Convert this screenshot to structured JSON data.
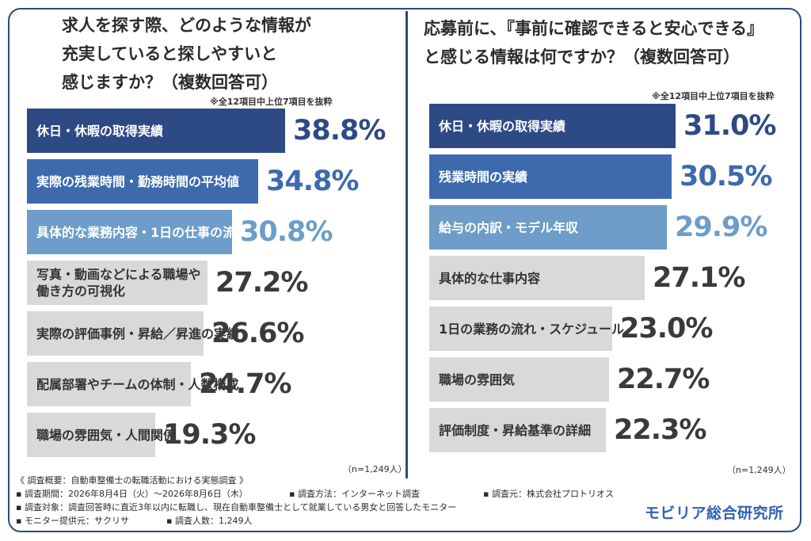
{
  "chart_data": [
    {
      "type": "bar",
      "orientation": "horizontal",
      "title": "求人を探す際、どのような情報が\n充実していると探しやすいと\n感じますか？（複数回答可）",
      "note": "※全12項目中上位7項目を抜粋",
      "sample": "（n=1,249人）",
      "categories": [
        "休日・休暇の取得実績",
        "実際の残業時間・勤務時間の平均値",
        "具体的な業務内容・1日の仕事の流れ",
        "写真・動画などによる職場や\n働き方の可視化",
        "実際の評価事例・昇給／昇進の実績",
        "配属部署やチームの体制・人数構成",
        "職場の雰囲気・人間関係"
      ],
      "values": [
        38.8,
        34.8,
        30.8,
        27.2,
        26.6,
        24.7,
        19.3
      ],
      "labels": [
        "38.8%",
        "34.8%",
        "30.8%",
        "27.2%",
        "26.6%",
        "24.7%",
        "19.3%"
      ],
      "xlim": [
        0,
        56
      ],
      "colors": [
        "#2e4a85",
        "#3d6aad",
        "#6d9dc8",
        "#d9d9d9",
        "#d9d9d9",
        "#d9d9d9",
        "#d9d9d9"
      ],
      "value_colors": [
        "#2e4a85",
        "#3d6aad",
        "#6d9dc8",
        "#3a3a3a",
        "#3a3a3a",
        "#3a3a3a",
        "#3a3a3a"
      ]
    },
    {
      "type": "bar",
      "orientation": "horizontal",
      "title": "応募前に、『事前に確認できると安心できる』\nと感じる情報は何ですか？（複数回答可）",
      "note": "※全12項目中上位7項目を抜粋",
      "sample": "（n=1,249人）",
      "categories": [
        "休日・休暇の取得実績",
        "残業時間の実績",
        "給与の内訳・モデル年収",
        "具体的な仕事内容",
        "1日の業務の流れ・スケジュール",
        "職場の雰囲気",
        "評価制度・昇給基準の詳細"
      ],
      "values": [
        31.0,
        30.5,
        29.9,
        27.1,
        23.0,
        22.7,
        22.3
      ],
      "labels": [
        "31.0%",
        "30.5%",
        "29.9%",
        "27.1%",
        "23.0%",
        "22.7%",
        "22.3%"
      ],
      "xlim": [
        0,
        45.9
      ],
      "colors": [
        "#2e4a85",
        "#3d6aad",
        "#6d9dc8",
        "#d9d9d9",
        "#d9d9d9",
        "#d9d9d9",
        "#d9d9d9"
      ],
      "value_colors": [
        "#2e4a85",
        "#3d6aad",
        "#6d9dc8",
        "#3a3a3a",
        "#3a3a3a",
        "#3a3a3a",
        "#3a3a3a"
      ]
    }
  ],
  "footer": {
    "heading": "《 調査概要：自動車整備士の転職活動における実態調査 》",
    "items": [
      [
        "▪ 調査期間：2026年8月4日（火）～2026年8月6日（木）",
        "▪ 調査方法：インターネット調査",
        "▪ 調査元：株式会社プロトリオス"
      ],
      [
        "▪ 調査対象：調査回答時に直近3年以内に転職し、現在自動車整備士として就業している男女と回答したモニター"
      ],
      [
        "▪ モニター提供元：サクリサ",
        "▪ 調査人数：1,249人"
      ]
    ],
    "logo": "モビリア総合研究所"
  }
}
